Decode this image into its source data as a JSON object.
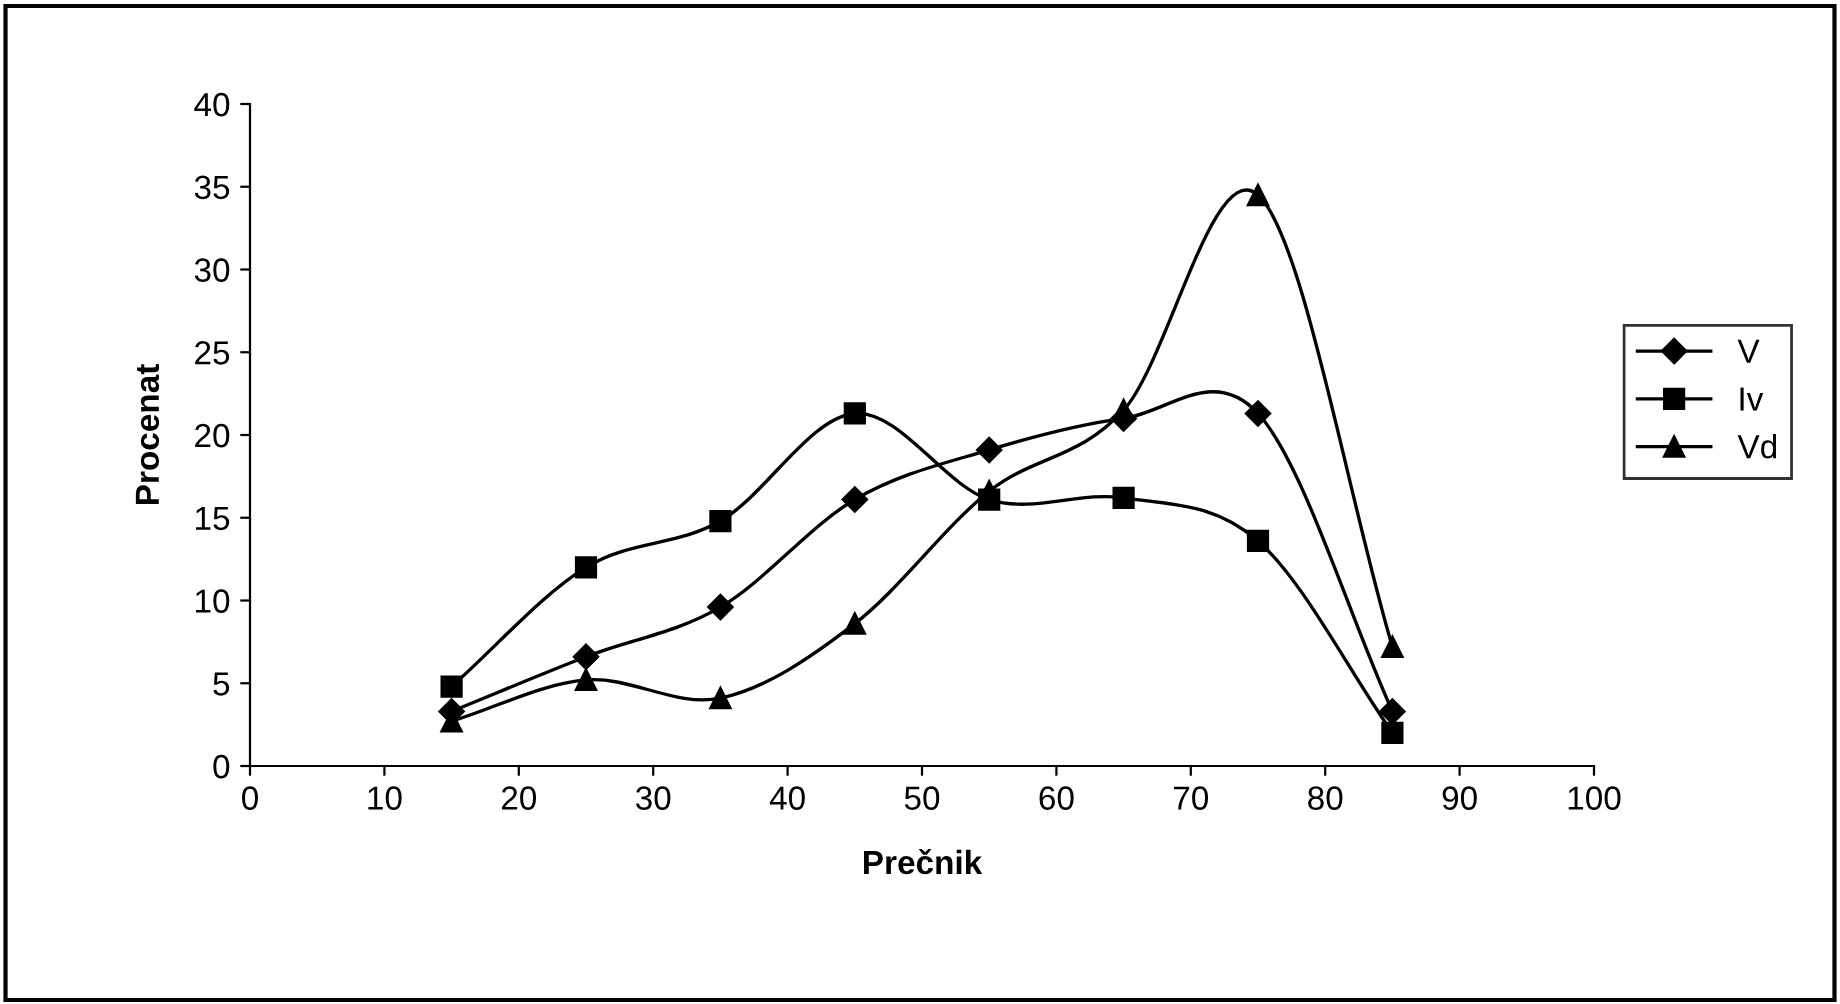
{
  "chart_data": {
    "type": "line",
    "xlabel": "Prečnik",
    "ylabel": "Procenat",
    "x": [
      15,
      25,
      35,
      45,
      55,
      65,
      75,
      85
    ],
    "series": [
      {
        "name": "V",
        "color": "#000000",
        "marker": "diamond",
        "values": [
          3.3,
          6.6,
          9.6,
          16.1,
          19.1,
          21.0,
          21.3,
          3.3
        ]
      },
      {
        "name": "Iv",
        "color": "#000000",
        "marker": "square",
        "values": [
          4.8,
          12.0,
          14.8,
          21.3,
          16.1,
          16.2,
          13.6,
          2.0
        ]
      },
      {
        "name": "Vd",
        "color": "#000000",
        "marker": "triangle",
        "values": [
          2.7,
          5.2,
          4.1,
          8.6,
          16.6,
          21.5,
          34.5,
          7.2
        ]
      }
    ],
    "xlim": [
      0,
      100
    ],
    "xticks": [
      0,
      10,
      20,
      30,
      40,
      50,
      60,
      70,
      80,
      90,
      100
    ],
    "ylim": [
      0,
      40
    ],
    "yticks": [
      0,
      5,
      10,
      15,
      20,
      25,
      30,
      35,
      40
    ],
    "grid": false,
    "legend": "right",
    "line_style": "solid"
  }
}
